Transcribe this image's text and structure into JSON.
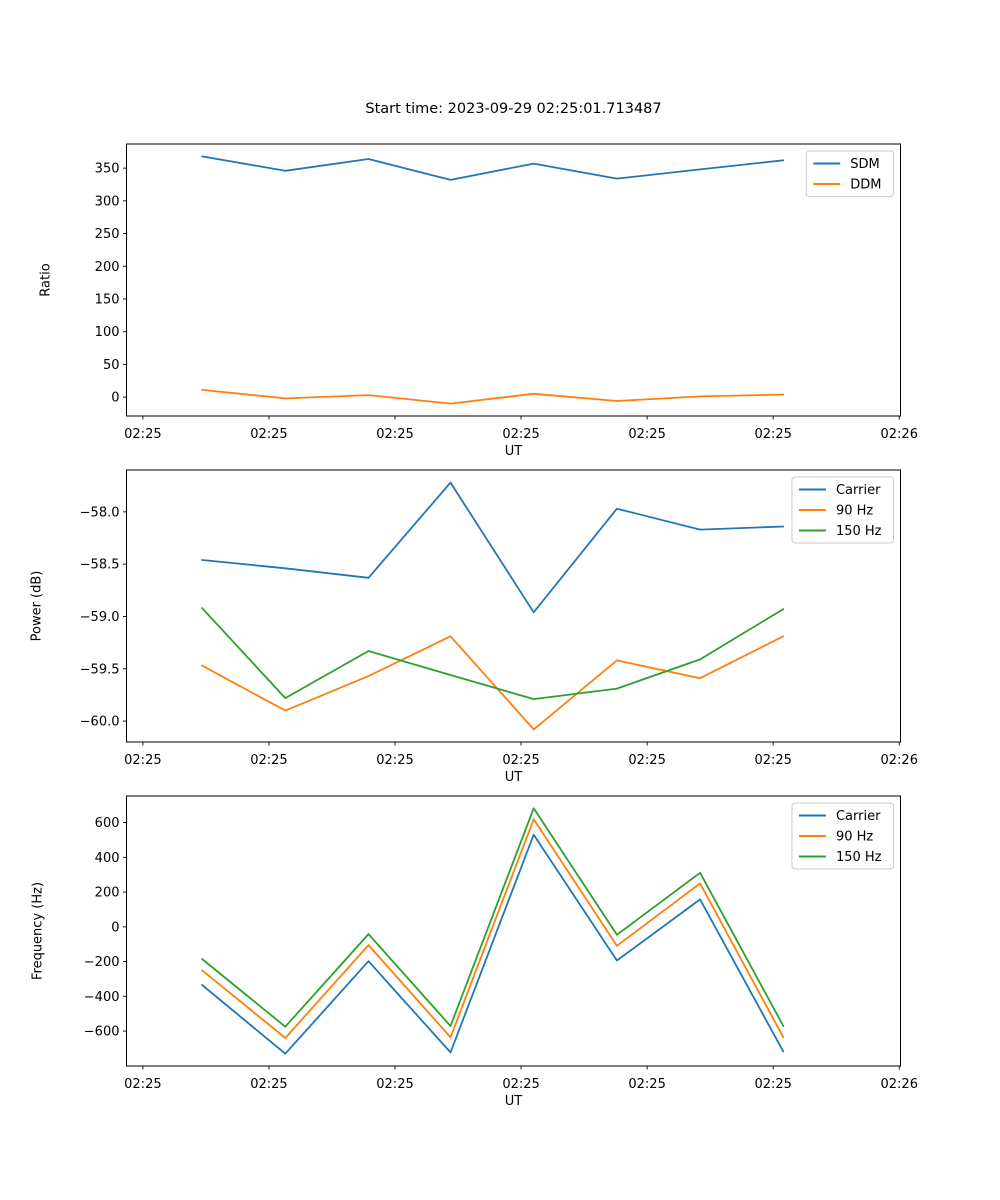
{
  "figure": {
    "title": "Start time: 2023-09-29 02:25:01.713487",
    "background": "#ffffff",
    "palette": {
      "blue": "#1f77b4",
      "orange": "#ff7f0e",
      "green": "#2ca02c"
    }
  },
  "x_axis": {
    "label": "UT",
    "xlim_seconds": [
      -1.3,
      60.1
    ],
    "tick_seconds": [
      0,
      10,
      20,
      30,
      40,
      50,
      60
    ],
    "ticklabels": [
      "02:25",
      "02:25",
      "02:25",
      "02:25",
      "02:25",
      "02:25",
      "02:26"
    ],
    "sample_seconds": [
      4.7,
      11.3,
      17.9,
      24.4,
      31.0,
      37.6,
      44.2,
      50.8
    ]
  },
  "chart_data": [
    {
      "type": "line",
      "title": "Start time: 2023-09-29 02:25:01.713487",
      "xlabel": "UT",
      "ylabel": "Ratio",
      "ylim": [
        -28.9,
        386.9
      ],
      "y_ticks": [
        0,
        50,
        100,
        150,
        200,
        250,
        300,
        350
      ],
      "y_ticklabels": [
        "0",
        "50",
        "100",
        "150",
        "200",
        "250",
        "300",
        "350"
      ],
      "grid": false,
      "legend_position": "upper right",
      "series": [
        {
          "name": "SDM",
          "color": "#1f77b4",
          "values": [
            368,
            346,
            364,
            332,
            357,
            334,
            348,
            362
          ]
        },
        {
          "name": "DDM",
          "color": "#ff7f0e",
          "values": [
            11,
            -2,
            3,
            -10,
            5,
            -6,
            1,
            4
          ]
        }
      ]
    },
    {
      "type": "line",
      "title": "",
      "xlabel": "UT",
      "ylabel": "Power (dB)",
      "ylim": [
        -60.2,
        -57.6
      ],
      "y_ticks": [
        -58.0,
        -58.5,
        -59.0,
        -59.5,
        -60.0
      ],
      "y_ticklabels": [
        "−58.0",
        "−58.5",
        "−59.0",
        "−59.5",
        "−60.0"
      ],
      "grid": false,
      "legend_position": "upper right",
      "series": [
        {
          "name": "Carrier",
          "color": "#1f77b4",
          "values": [
            -58.46,
            -58.54,
            -58.63,
            -57.72,
            -58.96,
            -57.97,
            -58.17,
            -58.14
          ]
        },
        {
          "name": "90 Hz",
          "color": "#ff7f0e",
          "values": [
            -59.47,
            -59.9,
            -59.57,
            -59.19,
            -60.08,
            -59.42,
            -59.59,
            -59.19
          ]
        },
        {
          "name": "150 Hz",
          "color": "#2ca02c",
          "values": [
            -58.92,
            -59.78,
            -59.33,
            -59.56,
            -59.79,
            -59.69,
            -59.41,
            -58.93
          ]
        }
      ]
    },
    {
      "type": "line",
      "title": "",
      "xlabel": "UT",
      "ylabel": "Frequency (Hz)",
      "ylim": [
        -801,
        753
      ],
      "y_ticks": [
        600,
        400,
        200,
        0,
        -200,
        -400,
        -600
      ],
      "y_ticklabels": [
        "600",
        "400",
        "200",
        "0",
        "−200",
        "−400",
        "−600"
      ],
      "grid": false,
      "legend_position": "upper right",
      "series": [
        {
          "name": "Carrier",
          "color": "#1f77b4",
          "values": [
            -335,
            -730,
            -198,
            -723,
            530,
            -194,
            158,
            -718
          ]
        },
        {
          "name": "90 Hz",
          "color": "#ff7f0e",
          "values": [
            -250,
            -640,
            -105,
            -636,
            619,
            -109,
            250,
            -636
          ]
        },
        {
          "name": "150 Hz",
          "color": "#2ca02c",
          "values": [
            -185,
            -575,
            -42,
            -571,
            682,
            -46,
            311,
            -571
          ]
        }
      ]
    }
  ]
}
